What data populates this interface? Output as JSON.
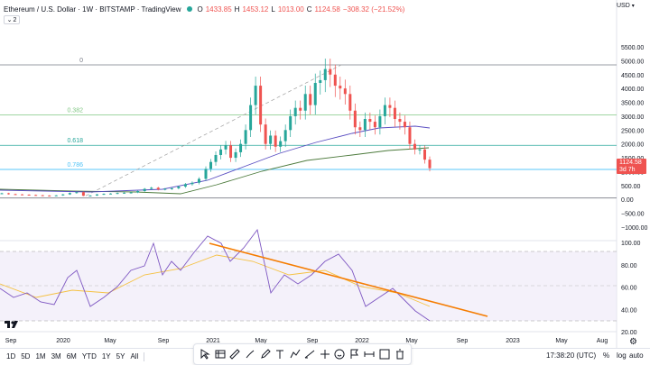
{
  "legend": {
    "title": "Ethereum / U.S. Dollar · 1W · BITSTAMP · TradingView",
    "open_label": "O",
    "open": "1433.85",
    "high_label": "H",
    "high": "1453.12",
    "low_label": "L",
    "low": "1013.00",
    "close_label": "C",
    "close": "1124.58",
    "change": "−308.32 (−21.52%)",
    "collapse_count": "2"
  },
  "currency": "USD",
  "last_price": {
    "value": "1124.58",
    "countdown": "3d 7h"
  },
  "colors": {
    "up": "#26a69a",
    "down": "#ef5350",
    "ma_fast": "#5b4fc2",
    "ma_slow": "#4c7a3c",
    "fib_0382": "#81c784",
    "fib_0618": "#26a69a",
    "fib_0786": "#4fc3f7",
    "rsi_line": "#7e57c2",
    "rsi_ma": "#f5c142",
    "rsi_band": "#ede7f6",
    "trendline": "#f57c00"
  },
  "fib_labels": {
    "level_0": "0",
    "level_0382": "0.382",
    "level_0618": "0.618",
    "level_0786": "0.786"
  },
  "price_axis": {
    "ticks": [
      "5500.00",
      "5000.00",
      "4500.00",
      "4000.00",
      "3500.00",
      "3000.00",
      "2500.00",
      "2000.00",
      "1500.00",
      "1000.00",
      "500.00",
      "0.00",
      "−500.00",
      "−1000.00"
    ]
  },
  "rsi_axis": {
    "ticks": [
      "100.00",
      "80.00",
      "60.00",
      "40.00",
      "20.00"
    ]
  },
  "time_axis": {
    "ticks": [
      "Sep",
      "2020",
      "May",
      "Sep",
      "2021",
      "May",
      "Sep",
      "2022",
      "May",
      "Sep",
      "2023",
      "May",
      "Aug"
    ]
  },
  "ranges": [
    "1D",
    "5D",
    "1M",
    "3M",
    "6M",
    "YTD",
    "1Y",
    "5Y",
    "All"
  ],
  "drawing_tools": [
    "cursor-icon",
    "table-icon",
    "ruler-icon",
    "brush-icon",
    "pen-icon",
    "text-icon",
    "path-icon",
    "trend-icon",
    "sparkle-icon",
    "emoji-icon",
    "flag-icon",
    "measure-icon",
    "frame-icon",
    "trash-icon"
  ],
  "clock": "17:38:20 (UTC)",
  "percent_btn": "%",
  "log_btn": "log",
  "auto_btn": "auto",
  "chart_data": {
    "type": "candlestick",
    "title": "Ethereum / U.S. Dollar · 1W · BITSTAMP",
    "ylim": [
      -1000,
      5500
    ],
    "x_ticks": [
      "Sep",
      "2020",
      "May",
      "Sep",
      "2021",
      "May",
      "Sep",
      "2022",
      "May",
      "Sep",
      "2023",
      "May",
      "Aug"
    ],
    "price_series": [
      {
        "t": 0,
        "c": 220
      },
      {
        "t": 1,
        "c": 190
      },
      {
        "t": 2,
        "c": 180
      },
      {
        "t": 3,
        "c": 170
      },
      {
        "t": 4,
        "c": 160
      },
      {
        "t": 5,
        "c": 150
      },
      {
        "t": 6,
        "c": 140
      },
      {
        "t": 7,
        "c": 135
      },
      {
        "t": 8,
        "c": 145
      },
      {
        "t": 9,
        "c": 180
      },
      {
        "t": 10,
        "c": 230
      },
      {
        "t": 11,
        "c": 260
      },
      {
        "t": 12,
        "c": 130
      },
      {
        "t": 13,
        "c": 140
      },
      {
        "t": 14,
        "c": 180
      },
      {
        "t": 15,
        "c": 200
      },
      {
        "t": 16,
        "c": 210
      },
      {
        "t": 17,
        "c": 230
      },
      {
        "t": 18,
        "c": 240
      },
      {
        "t": 19,
        "c": 250
      },
      {
        "t": 20,
        "c": 300
      },
      {
        "t": 21,
        "c": 380
      },
      {
        "t": 22,
        "c": 420
      },
      {
        "t": 23,
        "c": 360
      },
      {
        "t": 24,
        "c": 380
      },
      {
        "t": 25,
        "c": 400
      },
      {
        "t": 26,
        "c": 460
      },
      {
        "t": 27,
        "c": 550
      },
      {
        "t": 28,
        "c": 600
      },
      {
        "t": 29,
        "c": 740
      },
      {
        "t": 30,
        "c": 1100
      },
      {
        "t": 31,
        "c": 1350
      },
      {
        "t": 32,
        "c": 1600
      },
      {
        "t": 33,
        "c": 1800
      },
      {
        "t": 34,
        "c": 1950
      },
      {
        "t": 35,
        "c": 1500
      },
      {
        "t": 36,
        "c": 1700
      },
      {
        "t": 37,
        "c": 2000
      },
      {
        "t": 38,
        "c": 2500
      },
      {
        "t": 39,
        "c": 3400
      },
      {
        "t": 40,
        "c": 4100
      },
      {
        "t": 41,
        "c": 2700
      },
      {
        "t": 42,
        "c": 2000
      },
      {
        "t": 43,
        "c": 2300
      },
      {
        "t": 44,
        "c": 1900
      },
      {
        "t": 45,
        "c": 2100
      },
      {
        "t": 46,
        "c": 2500
      },
      {
        "t": 47,
        "c": 3000
      },
      {
        "t": 48,
        "c": 3300
      },
      {
        "t": 49,
        "c": 3200
      },
      {
        "t": 50,
        "c": 3800
      },
      {
        "t": 51,
        "c": 3400
      },
      {
        "t": 52,
        "c": 4200
      },
      {
        "t": 53,
        "c": 4300
      },
      {
        "t": 54,
        "c": 4700
      },
      {
        "t": 55,
        "c": 4500
      },
      {
        "t": 56,
        "c": 4100
      },
      {
        "t": 57,
        "c": 4000
      },
      {
        "t": 58,
        "c": 3800
      },
      {
        "t": 59,
        "c": 3200
      },
      {
        "t": 60,
        "c": 2600
      },
      {
        "t": 61,
        "c": 2500
      },
      {
        "t": 62,
        "c": 2900
      },
      {
        "t": 63,
        "c": 2800
      },
      {
        "t": 64,
        "c": 2600
      },
      {
        "t": 65,
        "c": 3000
      },
      {
        "t": 66,
        "c": 3400
      },
      {
        "t": 67,
        "c": 3300
      },
      {
        "t": 68,
        "c": 2900
      },
      {
        "t": 69,
        "c": 2800
      },
      {
        "t": 70,
        "c": 2600
      },
      {
        "t": 71,
        "c": 2000
      },
      {
        "t": 72,
        "c": 1800
      },
      {
        "t": 73,
        "c": 1800
      },
      {
        "t": 74,
        "c": 1433
      },
      {
        "t": 75,
        "c": 1124.58
      }
    ],
    "fib_levels": [
      {
        "name": "0",
        "value": 4850
      },
      {
        "name": "0.382",
        "value": 3050
      },
      {
        "name": "0.618",
        "value": 1950
      },
      {
        "name": "0.786",
        "value": 1080
      }
    ],
    "rsi_ylim": [
      20,
      100
    ],
    "rsi_bands": [
      30,
      50,
      70
    ]
  }
}
